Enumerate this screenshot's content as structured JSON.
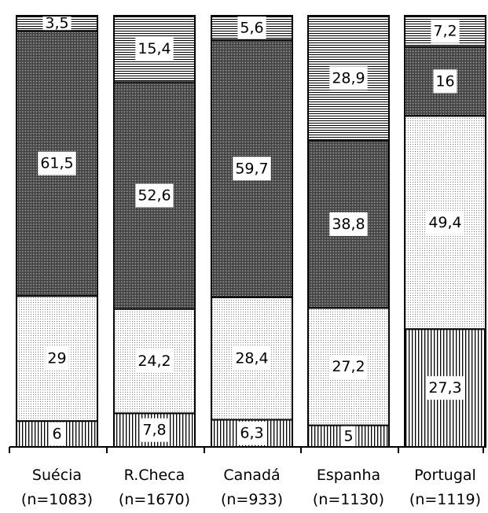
{
  "chart_data": {
    "type": "bar",
    "stacked": true,
    "categories": [
      "Suécia",
      "R.Checa",
      "Canadá",
      "Espanha",
      "Portugal"
    ],
    "sample_sizes": [
      "(n=1083)",
      "(n=1670)",
      "(n=933)",
      "(n=1130)",
      "(n=1119)"
    ],
    "series": [
      {
        "pattern": "vertical-stripes",
        "values": [
          6,
          7.8,
          6.3,
          5,
          27.3
        ],
        "labels": [
          "6",
          "7,8",
          "6,3",
          "5",
          "27,3"
        ]
      },
      {
        "pattern": "light-dots",
        "values": [
          29,
          24.2,
          28.4,
          27.2,
          49.4
        ],
        "labels": [
          "29",
          "24,2",
          "28,4",
          "27,2",
          "49,4"
        ]
      },
      {
        "pattern": "dark-dense",
        "values": [
          61.5,
          52.6,
          59.7,
          38.8,
          16
        ],
        "labels": [
          "61,5",
          "52,6",
          "59,7",
          "38,8",
          "16"
        ]
      },
      {
        "pattern": "horizontal-stripes",
        "values": [
          3.5,
          15.4,
          5.6,
          28.9,
          7.2
        ],
        "labels": [
          "3,5",
          "15,4",
          "5,6",
          "28,9",
          "7,2"
        ]
      }
    ],
    "ylim": [
      0,
      100
    ],
    "legend": "none",
    "grid": false
  }
}
